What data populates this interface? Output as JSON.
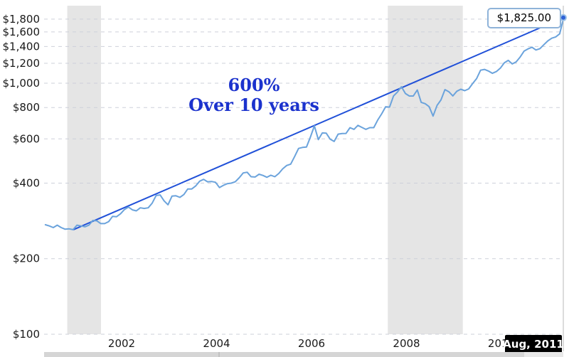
{
  "chart_data": {
    "type": "line",
    "annotation": {
      "line1": "600%",
      "line2": "Over 10 years"
    },
    "y_axis": {
      "scale": "log",
      "tick_values": [
        100,
        200,
        400,
        600,
        800,
        1000,
        1200,
        1400,
        1600,
        1800
      ],
      "tick_labels": [
        "$100",
        "$200",
        "$400",
        "$600",
        "$800",
        "$1,000",
        "$1,200",
        "$1,400",
        "$1,600",
        "$1,800"
      ],
      "range": [
        100,
        1900
      ],
      "grid": "dashed"
    },
    "x_axis": {
      "tick_values": [
        2002,
        2004,
        2006,
        2008,
        2010
      ],
      "tick_labels": [
        "2002",
        "2004",
        "2006",
        "2008",
        "2010"
      ],
      "range_years": [
        2000.7,
        2011.63
      ]
    },
    "recession_bands": [
      {
        "from": 2001.17,
        "to": 2001.88
      },
      {
        "from": 2007.92,
        "to": 2009.5
      }
    ],
    "series": {
      "name": "price",
      "interval": "monthly",
      "start": {
        "year": 2000,
        "month": 9
      },
      "values": [
        273,
        270,
        266,
        272,
        266,
        262,
        263,
        261,
        272,
        270,
        268,
        272,
        284,
        283,
        276,
        276,
        281,
        295,
        294,
        302,
        314,
        321,
        313,
        310,
        319,
        317,
        319,
        333,
        357,
        359,
        340,
        328,
        355,
        356,
        351,
        360,
        379,
        379,
        390,
        407,
        414,
        405,
        406,
        403,
        384,
        392,
        398,
        400,
        405,
        420,
        439,
        442,
        424,
        423,
        434,
        429,
        422,
        430,
        424,
        437,
        456,
        470,
        476,
        510,
        550,
        555,
        557,
        611,
        676,
        596,
        634,
        632,
        598,
        586,
        627,
        630,
        631,
        665,
        655,
        679,
        667,
        655,
        665,
        665,
        713,
        755,
        806,
        803,
        890,
        922,
        968,
        910,
        889,
        889,
        940,
        839,
        829,
        807,
        740,
        816,
        858,
        943,
        924,
        890,
        929,
        946,
        934,
        949,
        997,
        1043,
        1127,
        1135,
        1118,
        1095,
        1113,
        1148,
        1205,
        1233,
        1193,
        1216,
        1271,
        1342,
        1370,
        1391,
        1356,
        1373,
        1424,
        1474,
        1511,
        1529,
        1573,
        1825
      ]
    },
    "trend_line": {
      "from": {
        "year": 2001.3,
        "value": 261
      },
      "to": {
        "year": 2011.625,
        "value": 1825
      }
    },
    "cursor": {
      "year": 2011.625,
      "value": 1825,
      "value_label": "$1,825.00",
      "date_label": "Aug, 2011"
    }
  },
  "colors": {
    "price_line": "#6ba3dc",
    "trend_line": "#2050d8",
    "annotation_text": "#1b32cd",
    "gridline": "#cdd0da",
    "recession_band": "#e5e5e5",
    "crosshair": "#b8b8b8",
    "axis_text": "#1a1a1a",
    "marker_fill": "#2f62d6",
    "marker_halo": "#9dc2e8",
    "tooltip_border": "#8fb3d9",
    "tooltip_bg": "#ffffff",
    "tooltip_text": "#000000",
    "date_tooltip_bg": "#000000",
    "date_tooltip_text": "#ffffff",
    "slider_track": "#d5d5d5",
    "slider_segment": "#e8e8e8"
  }
}
